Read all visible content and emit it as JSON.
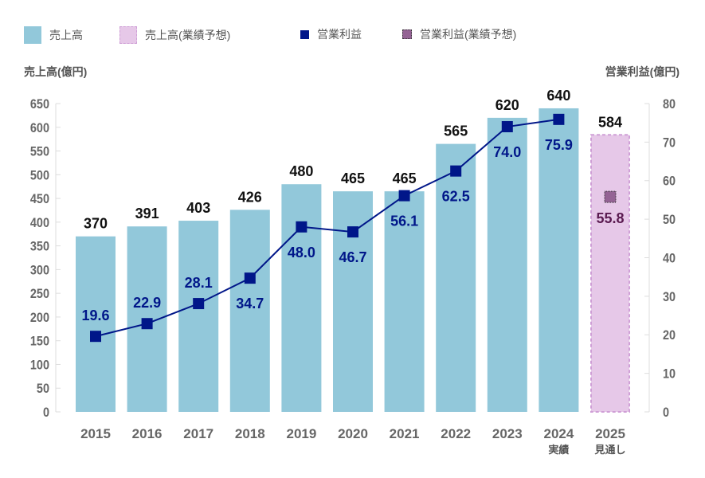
{
  "legend": {
    "sales": "売上高",
    "sales_forecast": "売上高(業績予想)",
    "profit": "営業利益",
    "profit_forecast": "営業利益(業績予想)"
  },
  "colors": {
    "sales": "#92c8da",
    "sales_forecast": "#e6c8e8",
    "sales_forecast_border": "#cf9fd6",
    "profit": "#001689",
    "profit_forecast": "#946394",
    "profit_forecast_text": "#5a1a50",
    "axis_text": "#666666"
  },
  "chart_data": {
    "type": "bar+line",
    "categories": [
      "2015",
      "2016",
      "2017",
      "2018",
      "2019",
      "2020",
      "2021",
      "2022",
      "2023",
      "2024",
      "2025"
    ],
    "category_sublabels": [
      "",
      "",
      "",
      "",
      "",
      "",
      "",
      "",
      "",
      "実績",
      "見通し"
    ],
    "ylabel_left": "売上高(億円)",
    "ylabel_right": "営業利益(億円)",
    "ylim_left": [
      0,
      650
    ],
    "ylim_right": [
      0,
      80
    ],
    "yticks_left": [
      0,
      50,
      100,
      150,
      200,
      250,
      300,
      350,
      400,
      450,
      500,
      550,
      600,
      650
    ],
    "yticks_right": [
      0,
      10,
      20,
      30,
      40,
      50,
      60,
      70,
      80
    ],
    "series": [
      {
        "name": "売上高",
        "type": "bar",
        "axis": "left",
        "values": [
          370,
          391,
          403,
          426,
          480,
          465,
          465,
          565,
          620,
          640,
          null
        ]
      },
      {
        "name": "売上高(業績予想)",
        "type": "bar",
        "axis": "left",
        "values": [
          null,
          null,
          null,
          null,
          null,
          null,
          null,
          null,
          null,
          null,
          584
        ]
      },
      {
        "name": "営業利益",
        "type": "line",
        "axis": "right",
        "values": [
          19.6,
          22.9,
          28.1,
          34.7,
          48.0,
          46.7,
          56.1,
          62.5,
          74.0,
          75.9,
          null
        ]
      },
      {
        "name": "営業利益(業績予想)",
        "type": "marker",
        "axis": "right",
        "values": [
          null,
          null,
          null,
          null,
          null,
          null,
          null,
          null,
          null,
          null,
          55.8
        ]
      }
    ]
  }
}
